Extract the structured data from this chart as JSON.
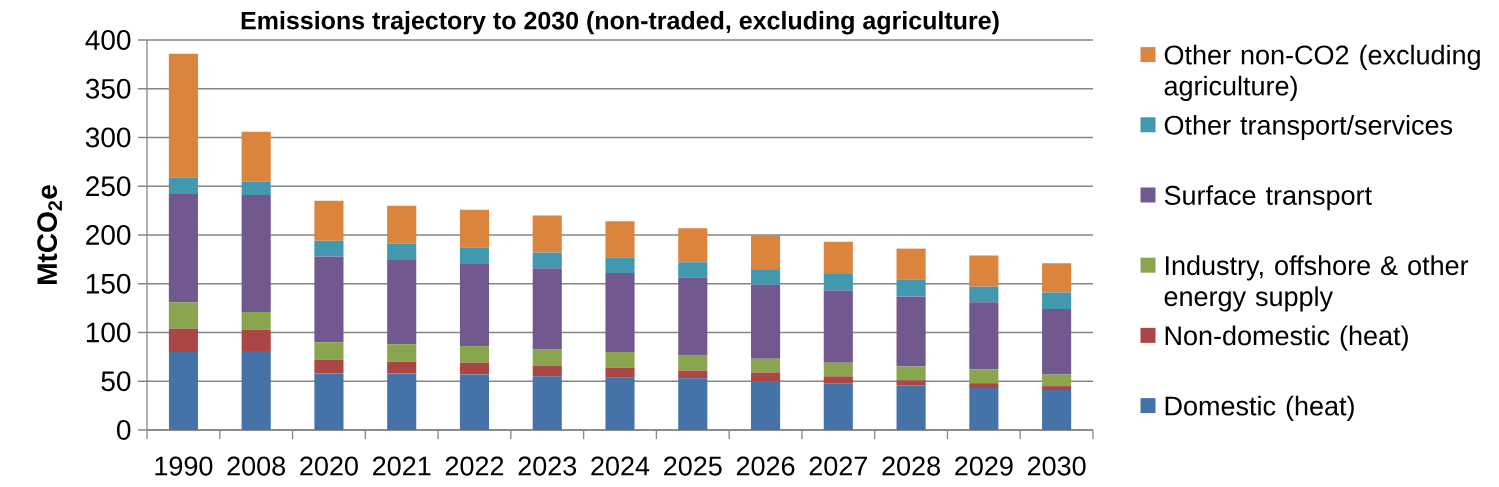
{
  "chart_data": {
    "type": "bar",
    "stacked": true,
    "title": "Emissions trajectory to 2030 (non-traded, excluding agriculture)",
    "ylabel": "MtCO$_{2}$e",
    "categories": [
      "1990",
      "2008",
      "2020",
      "2021",
      "2022",
      "2023",
      "2024",
      "2025",
      "2026",
      "2027",
      "2028",
      "2029",
      "2030"
    ],
    "series": [
      {
        "name": "Domestic (heat)",
        "color": "#4572a7",
        "values": [
          80,
          81,
          58,
          58,
          57,
          55,
          54,
          53,
          50,
          48,
          46,
          43,
          41
        ]
      },
      {
        "name": "Non-domestic (heat)",
        "color": "#aa4643",
        "values": [
          24,
          22,
          14,
          12,
          12,
          11,
          10,
          8,
          9,
          7,
          5,
          5,
          4
        ]
      },
      {
        "name": "Industry, offshore & other energy supply",
        "color": "#89a54e",
        "values": [
          27,
          18,
          18,
          18,
          17,
          17,
          16,
          16,
          14,
          14,
          14,
          14,
          12
        ]
      },
      {
        "name": "Surface transport",
        "color": "#71588f",
        "values": [
          111,
          120,
          88,
          87,
          85,
          83,
          81,
          79,
          76,
          74,
          72,
          69,
          67
        ]
      },
      {
        "name": "Other transport/services",
        "color": "#4198af",
        "values": [
          17,
          14,
          16,
          16,
          16,
          16,
          16,
          16,
          16,
          17,
          17,
          16,
          17
        ]
      },
      {
        "name": "Other non-CO2 (excluding agriculture)",
        "color": "#db843d",
        "values": [
          127,
          51,
          41,
          39,
          39,
          38,
          37,
          35,
          35,
          33,
          32,
          32,
          30
        ]
      }
    ],
    "ylim": [
      0,
      400
    ],
    "yticks": [
      0,
      50,
      100,
      150,
      200,
      250,
      300,
      350,
      400
    ],
    "grid": "y",
    "legend": "right"
  }
}
